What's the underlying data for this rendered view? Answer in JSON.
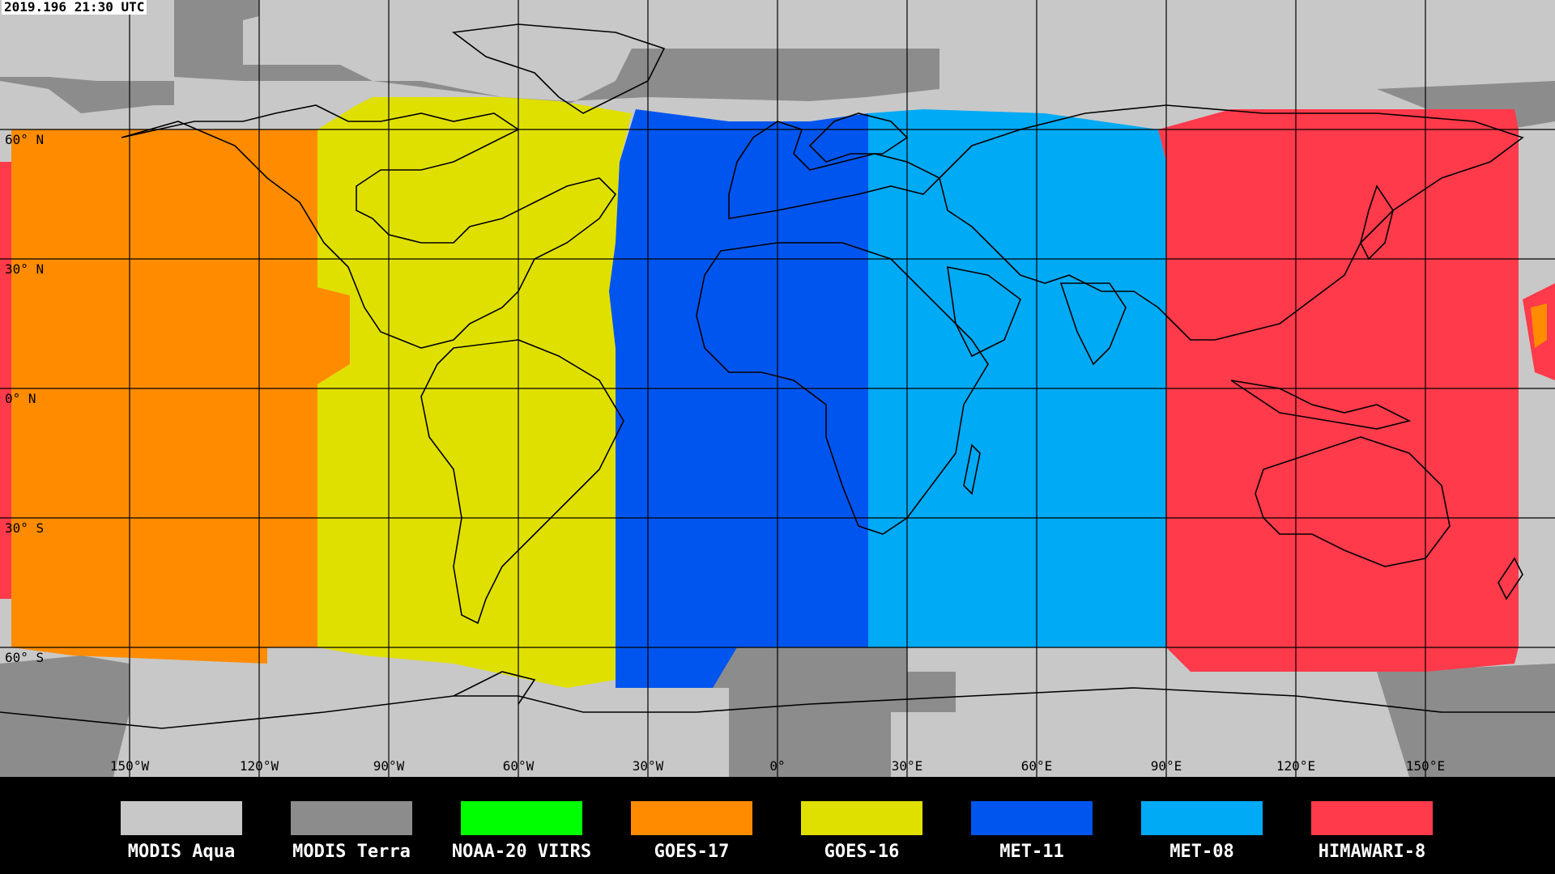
{
  "timestamp": "2019.196 21:30 UTC",
  "latitude_labels": [
    "60° N",
    "30° N",
    "0° N",
    "30° S",
    "60° S"
  ],
  "longitude_labels": [
    "150°W",
    "120°W",
    "90°W",
    "60°W",
    "30°W",
    "0°",
    "30°E",
    "60°E",
    "90°E",
    "120°E",
    "150°E"
  ],
  "legend": [
    {
      "label": "MODIS Aqua",
      "color": "#c8c8c8"
    },
    {
      "label": "MODIS Terra",
      "color": "#8c8c8c"
    },
    {
      "label": "NOAA-20 VIIRS",
      "color": "#00ff00"
    },
    {
      "label": "GOES-17",
      "color": "#ff8c00"
    },
    {
      "label": "GOES-16",
      "color": "#e0e000"
    },
    {
      "label": "MET-11",
      "color": "#0055ee"
    },
    {
      "label": "MET-08",
      "color": "#00aaf5"
    },
    {
      "label": "HIMAWARI-8",
      "color": "#ff3a4a"
    }
  ]
}
